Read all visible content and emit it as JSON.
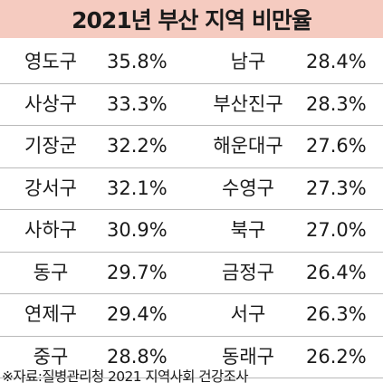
{
  "title": "2021년 부산 지역 비만율",
  "rows": [
    {
      "left_name": "영도구",
      "left_value": "35.8%",
      "right_name": "남구",
      "right_value": "28.4%"
    },
    {
      "left_name": "사상구",
      "left_value": "33.3%",
      "right_name": "부산진구",
      "right_value": "28.3%"
    },
    {
      "left_name": "기장군",
      "left_value": "32.2%",
      "right_name": "해운대구",
      "right_value": "27.6%"
    },
    {
      "left_name": "강서구",
      "left_value": "32.1%",
      "right_name": "수영구",
      "right_value": "27.3%"
    },
    {
      "left_name": "사하구",
      "left_value": "30.9%",
      "right_name": "북구",
      "right_value": "27.0%"
    },
    {
      "left_name": "동구",
      "left_value": "29.7%",
      "right_name": "금정구",
      "right_value": "26.4%"
    },
    {
      "left_name": "연제구",
      "left_value": "29.4%",
      "right_name": "서구",
      "right_value": "26.3%"
    },
    {
      "left_name": "중구",
      "left_value": "28.8%",
      "right_name": "동래구",
      "right_value": "26.2%"
    }
  ],
  "source": "※자료:질병관리청 2021 지역사회 건강조사",
  "colors": {
    "title_background": "#f5cbc0",
    "divider": "#b9b9b9",
    "text": "#1a1a1a"
  }
}
